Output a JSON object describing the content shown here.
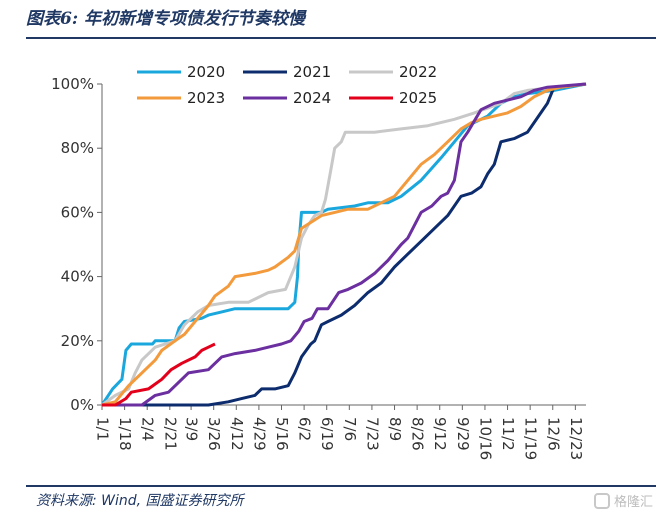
{
  "figure": {
    "title": "图表6:  年初新增专项债发行节奏较慢",
    "source": "资料来源:  Wind,  国盛证券研究所",
    "watermark": "格隆汇"
  },
  "chart_data": {
    "type": "line",
    "title": "",
    "xlabel": "",
    "ylabel": "",
    "x_ticks": [
      "1/1",
      "1/18",
      "2/4",
      "2/21",
      "3/9",
      "3/26",
      "4/12",
      "4/29",
      "5/16",
      "6/2",
      "6/19",
      "7/6",
      "7/23",
      "8/9",
      "8/26",
      "9/12",
      "9/29",
      "10/16",
      "11/2",
      "11/19",
      "12/6",
      "12/23"
    ],
    "x_tick_days": [
      0,
      17,
      34,
      51,
      67,
      84,
      101,
      118,
      135,
      152,
      169,
      186,
      203,
      220,
      237,
      254,
      271,
      288,
      305,
      322,
      339,
      356
    ],
    "xlim": [
      0,
      364
    ],
    "ylim": [
      0,
      100
    ],
    "y_ticks": [
      0,
      20,
      40,
      60,
      80,
      100
    ],
    "y_tick_labels": [
      "0%",
      "20%",
      "40%",
      "60%",
      "80%",
      "100%"
    ],
    "grid": false,
    "legend_position": "top",
    "series": [
      {
        "name": "2020",
        "color": "#1aa7dd",
        "points": [
          [
            0,
            0
          ],
          [
            8,
            5
          ],
          [
            15,
            8
          ],
          [
            18,
            17
          ],
          [
            22,
            19
          ],
          [
            38,
            19
          ],
          [
            40,
            20
          ],
          [
            55,
            20
          ],
          [
            58,
            24
          ],
          [
            62,
            26
          ],
          [
            75,
            27
          ],
          [
            80,
            28
          ],
          [
            90,
            29
          ],
          [
            100,
            30
          ],
          [
            115,
            30
          ],
          [
            140,
            30
          ],
          [
            145,
            32
          ],
          [
            147,
            40
          ],
          [
            148,
            50
          ],
          [
            150,
            60
          ],
          [
            165,
            60
          ],
          [
            170,
            61
          ],
          [
            190,
            62
          ],
          [
            200,
            63
          ],
          [
            215,
            63
          ],
          [
            225,
            65
          ],
          [
            240,
            70
          ],
          [
            255,
            77
          ],
          [
            265,
            82
          ],
          [
            275,
            87
          ],
          [
            290,
            90
          ],
          [
            300,
            94
          ],
          [
            310,
            96
          ],
          [
            320,
            97
          ],
          [
            340,
            98
          ],
          [
            364,
            100
          ]
        ]
      },
      {
        "name": "2021",
        "color": "#0c2c6e",
        "points": [
          [
            0,
            0
          ],
          [
            80,
            0
          ],
          [
            95,
            1
          ],
          [
            105,
            2
          ],
          [
            115,
            3
          ],
          [
            120,
            5
          ],
          [
            130,
            5
          ],
          [
            140,
            6
          ],
          [
            145,
            10
          ],
          [
            150,
            15
          ],
          [
            157,
            19
          ],
          [
            160,
            20
          ],
          [
            165,
            25
          ],
          [
            170,
            26
          ],
          [
            180,
            28
          ],
          [
            190,
            31
          ],
          [
            200,
            35
          ],
          [
            210,
            38
          ],
          [
            220,
            43
          ],
          [
            230,
            47
          ],
          [
            240,
            51
          ],
          [
            250,
            55
          ],
          [
            260,
            59
          ],
          [
            270,
            65
          ],
          [
            278,
            66
          ],
          [
            285,
            68
          ],
          [
            290,
            72
          ],
          [
            295,
            75
          ],
          [
            300,
            82
          ],
          [
            310,
            83
          ],
          [
            320,
            85
          ],
          [
            330,
            91
          ],
          [
            335,
            94
          ],
          [
            338,
            97
          ],
          [
            340,
            99
          ],
          [
            345,
            99
          ],
          [
            364,
            100
          ]
        ]
      },
      {
        "name": "2022",
        "color": "#c8c8c8",
        "points": [
          [
            0,
            0
          ],
          [
            10,
            3
          ],
          [
            20,
            5
          ],
          [
            25,
            10
          ],
          [
            30,
            14
          ],
          [
            40,
            18
          ],
          [
            55,
            20
          ],
          [
            62,
            25
          ],
          [
            72,
            29
          ],
          [
            80,
            31
          ],
          [
            95,
            32
          ],
          [
            110,
            32
          ],
          [
            125,
            35
          ],
          [
            138,
            36
          ],
          [
            145,
            43
          ],
          [
            150,
            52
          ],
          [
            155,
            56
          ],
          [
            160,
            59
          ],
          [
            165,
            60
          ],
          [
            168,
            64
          ],
          [
            172,
            73
          ],
          [
            175,
            80
          ],
          [
            180,
            82
          ],
          [
            183,
            85
          ],
          [
            205,
            85
          ],
          [
            225,
            86
          ],
          [
            245,
            87
          ],
          [
            265,
            89
          ],
          [
            280,
            91
          ],
          [
            300,
            94
          ],
          [
            310,
            97
          ],
          [
            320,
            98
          ],
          [
            340,
            99
          ],
          [
            364,
            100
          ]
        ]
      },
      {
        "name": "2023",
        "color": "#f39a3c",
        "points": [
          [
            0,
            0
          ],
          [
            10,
            1
          ],
          [
            20,
            6
          ],
          [
            30,
            10
          ],
          [
            40,
            14
          ],
          [
            45,
            17
          ],
          [
            55,
            20
          ],
          [
            62,
            22
          ],
          [
            70,
            26
          ],
          [
            80,
            31
          ],
          [
            85,
            34
          ],
          [
            95,
            37
          ],
          [
            100,
            40
          ],
          [
            115,
            41
          ],
          [
            125,
            42
          ],
          [
            130,
            43
          ],
          [
            140,
            46
          ],
          [
            145,
            48
          ],
          [
            150,
            55
          ],
          [
            165,
            59
          ],
          [
            175,
            60
          ],
          [
            185,
            61
          ],
          [
            200,
            61
          ],
          [
            210,
            63
          ],
          [
            220,
            65
          ],
          [
            230,
            70
          ],
          [
            240,
            75
          ],
          [
            250,
            78
          ],
          [
            260,
            82
          ],
          [
            270,
            86
          ],
          [
            278,
            88
          ],
          [
            285,
            89
          ],
          [
            295,
            90
          ],
          [
            305,
            91
          ],
          [
            315,
            93
          ],
          [
            325,
            96
          ],
          [
            335,
            98
          ],
          [
            345,
            99
          ],
          [
            364,
            100
          ]
        ]
      },
      {
        "name": "2024",
        "color": "#6b2fa0",
        "points": [
          [
            0,
            0
          ],
          [
            30,
            0
          ],
          [
            40,
            3
          ],
          [
            50,
            4
          ],
          [
            60,
            8
          ],
          [
            65,
            10
          ],
          [
            80,
            11
          ],
          [
            90,
            15
          ],
          [
            100,
            16
          ],
          [
            115,
            17
          ],
          [
            125,
            18
          ],
          [
            135,
            19
          ],
          [
            142,
            20
          ],
          [
            148,
            23
          ],
          [
            152,
            26
          ],
          [
            158,
            27
          ],
          [
            162,
            30
          ],
          [
            170,
            30
          ],
          [
            178,
            35
          ],
          [
            185,
            36
          ],
          [
            195,
            38
          ],
          [
            205,
            41
          ],
          [
            215,
            45
          ],
          [
            225,
            50
          ],
          [
            230,
            52
          ],
          [
            235,
            56
          ],
          [
            240,
            60
          ],
          [
            248,
            62
          ],
          [
            255,
            65
          ],
          [
            260,
            66
          ],
          [
            265,
            70
          ],
          [
            270,
            82
          ],
          [
            275,
            85
          ],
          [
            285,
            92
          ],
          [
            295,
            94
          ],
          [
            305,
            95
          ],
          [
            315,
            96
          ],
          [
            325,
            98
          ],
          [
            335,
            99
          ],
          [
            364,
            100
          ]
        ]
      },
      {
        "name": "2025",
        "color": "#e3001b",
        "points": [
          [
            0,
            0
          ],
          [
            10,
            0
          ],
          [
            18,
            2
          ],
          [
            22,
            4
          ],
          [
            35,
            5
          ],
          [
            45,
            8
          ],
          [
            52,
            11
          ],
          [
            60,
            13
          ],
          [
            70,
            15
          ],
          [
            75,
            17
          ],
          [
            80,
            18
          ],
          [
            85,
            19
          ]
        ]
      }
    ]
  }
}
